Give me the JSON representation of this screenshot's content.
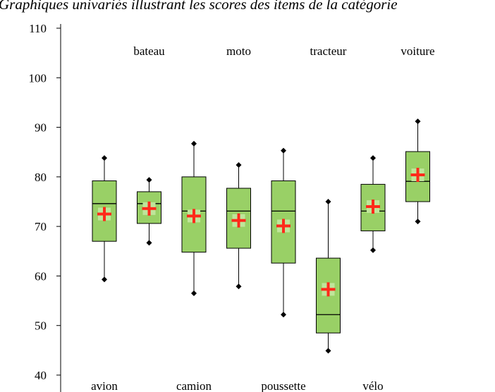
{
  "chart_data": {
    "type": "box",
    "title": "Graphiques univariés illustrant les scores des items de la catégorie",
    "xlabel": "",
    "ylabel": "",
    "ylim": [
      40,
      110
    ],
    "yticks": [
      40,
      50,
      60,
      70,
      80,
      90,
      100,
      110
    ],
    "grid": false,
    "colors": {
      "box_fill": "#99d066",
      "mean_marker": "#ff2a1a",
      "mean_square": "#bfe59a"
    },
    "categories": [
      "avion",
      "bateau",
      "camion",
      "moto",
      "poussette",
      "tracteur",
      "vélo",
      "voiture"
    ],
    "boxes": [
      {
        "name": "avion",
        "min": 59.3,
        "q1": 67.0,
        "median": 74.6,
        "q3": 79.2,
        "max": 83.8,
        "mean": 72.5
      },
      {
        "name": "bateau",
        "min": 66.7,
        "q1": 70.6,
        "median": 74.6,
        "q3": 77.0,
        "max": 79.4,
        "mean": 73.6
      },
      {
        "name": "camion",
        "min": 56.5,
        "q1": 64.8,
        "median": 73.1,
        "q3": 80.0,
        "max": 86.7,
        "mean": 72.1
      },
      {
        "name": "moto",
        "min": 57.9,
        "q1": 65.6,
        "median": 73.1,
        "q3": 77.7,
        "max": 82.4,
        "mean": 71.2
      },
      {
        "name": "poussette",
        "min": 52.2,
        "q1": 62.6,
        "median": 73.1,
        "q3": 79.2,
        "max": 85.3,
        "mean": 70.1
      },
      {
        "name": "tracteur",
        "min": 44.9,
        "q1": 48.5,
        "median": 52.2,
        "q3": 63.6,
        "max": 75.0,
        "mean": 57.3
      },
      {
        "name": "vélo",
        "min": 65.2,
        "q1": 69.1,
        "median": 73.1,
        "q3": 78.5,
        "max": 83.8,
        "mean": 74.0
      },
      {
        "name": "voiture",
        "min": 71.0,
        "q1": 75.0,
        "median": 79.1,
        "q3": 85.1,
        "max": 91.2,
        "mean": 80.4
      }
    ]
  }
}
